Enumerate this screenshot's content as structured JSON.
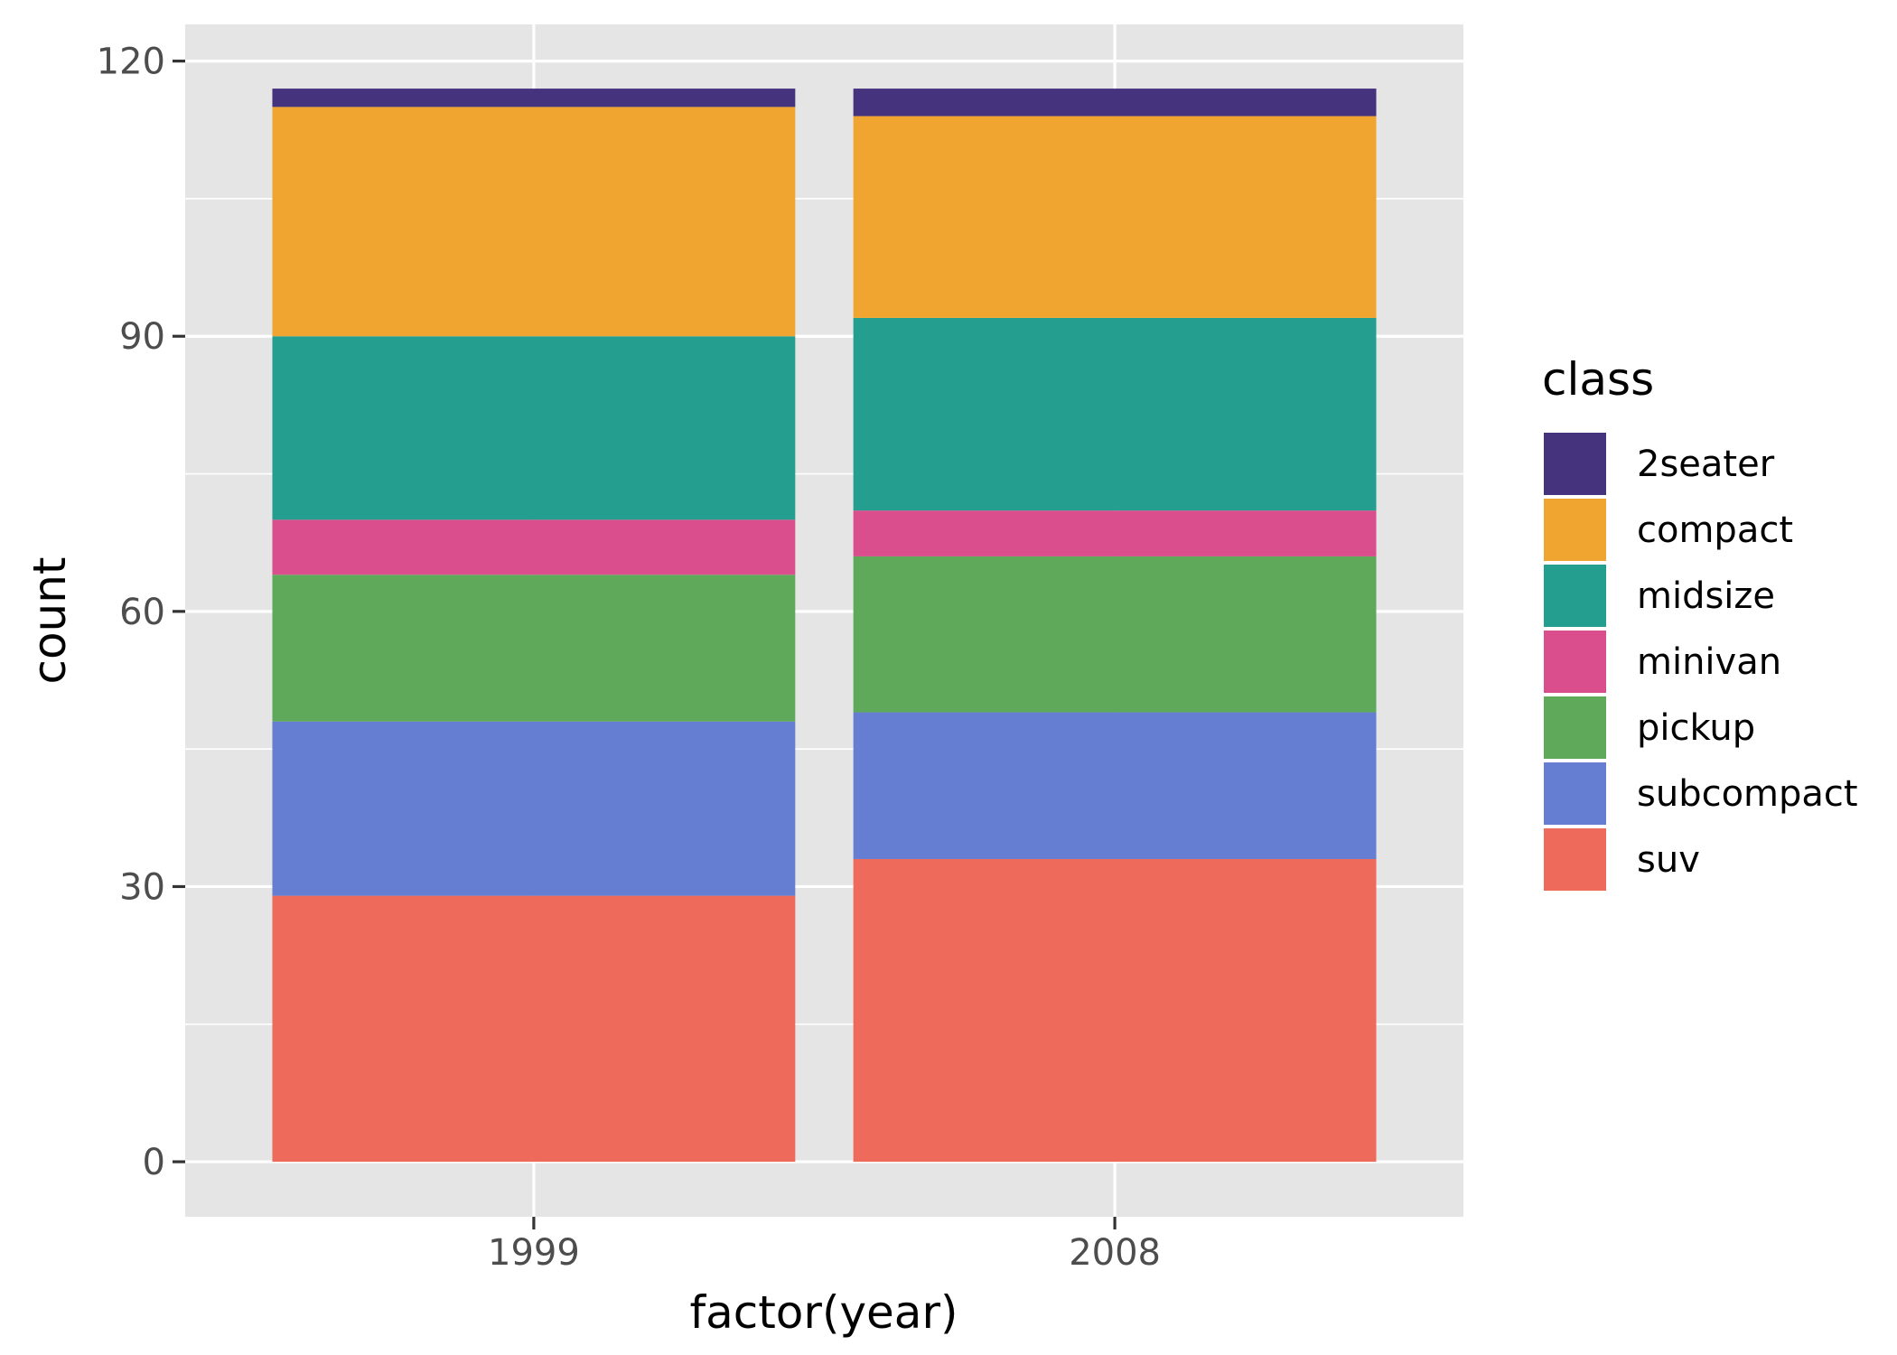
{
  "chart_data": {
    "type": "bar",
    "stacked": true,
    "categories": [
      "1999",
      "2008"
    ],
    "series": [
      {
        "name": "suv",
        "color": "#EE6A5B",
        "values": [
          29,
          33
        ]
      },
      {
        "name": "subcompact",
        "color": "#667ED1",
        "values": [
          19,
          16
        ]
      },
      {
        "name": "pickup",
        "color": "#5FA95B",
        "values": [
          16,
          17
        ]
      },
      {
        "name": "minivan",
        "color": "#DB4E8E",
        "values": [
          6,
          5
        ]
      },
      {
        "name": "midsize",
        "color": "#239E8F",
        "values": [
          20,
          21
        ]
      },
      {
        "name": "compact",
        "color": "#F0A531",
        "values": [
          25,
          22
        ]
      },
      {
        "name": "2seater",
        "color": "#46337E",
        "values": [
          2,
          3
        ]
      }
    ],
    "legend_order": [
      "2seater",
      "compact",
      "midsize",
      "minivan",
      "pickup",
      "subcompact",
      "suv"
    ],
    "xlabel": "factor(year)",
    "ylabel": "count",
    "ylim": [
      -6,
      124
    ],
    "yticks": [
      0,
      30,
      60,
      90,
      120
    ],
    "ytick_labels": [
      "0",
      "30",
      "60",
      "90",
      "120"
    ],
    "legend_title": "class",
    "legend_position": "right",
    "grid": true,
    "panel_background": "#E5E5E5"
  }
}
